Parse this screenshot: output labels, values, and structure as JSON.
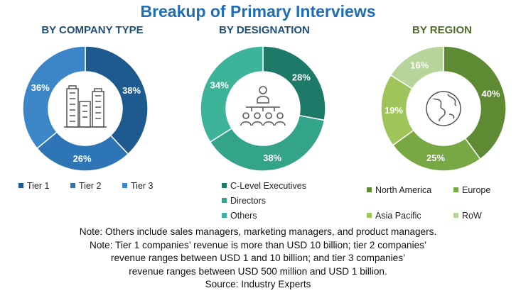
{
  "title": "Breakup of Primary Interviews",
  "colors": {
    "title": "#1f6eb5",
    "subtitle_company": "#1f4e79",
    "subtitle_designation": "#1f4e79",
    "subtitle_region": "#4e6f2c"
  },
  "chart_data": [
    {
      "type": "pie",
      "title": "BY COMPANY TYPE",
      "center_icon": "buildings-icon",
      "categories": [
        "Tier 1",
        "Tier 2",
        "Tier 3"
      ],
      "values": [
        38,
        26,
        36
      ],
      "labels": [
        "38%",
        "26%",
        "36%"
      ],
      "colors": [
        "#1f5a8f",
        "#2e75b6",
        "#3c86c8"
      ],
      "legend": "bottom"
    },
    {
      "type": "pie",
      "title": "BY DESIGNATION",
      "center_icon": "meeting-people-icon",
      "categories": [
        "C-Level Executives",
        "Directors",
        "Others"
      ],
      "values": [
        28,
        38,
        34
      ],
      "labels": [
        "28%",
        "38%",
        "34%"
      ],
      "colors": [
        "#1d7a68",
        "#33a38a",
        "#3db39a"
      ],
      "legend": "bottom"
    },
    {
      "type": "pie",
      "title": "BY REGION",
      "center_icon": "globe-icon",
      "categories": [
        "North America",
        "Europe",
        "Asia Pacific",
        "RoW"
      ],
      "values": [
        40,
        25,
        19,
        16
      ],
      "labels": [
        "40%",
        "25%",
        "19%",
        "16%"
      ],
      "colors": [
        "#5e8a33",
        "#78a843",
        "#9fc55a",
        "#b7d59a"
      ],
      "legend": "bottom"
    }
  ],
  "notes": [
    "Note: Others include sales managers, marketing managers, and product managers.",
    "Note: Tier 1 companies’ revenue is more than USD 10 billion; tier 2 companies’",
    "revenue ranges between USD 1 and 10 billion; and tier 3 companies’",
    "revenue ranges between USD 500 million and USD 1 billion.",
    "Source: Industry Experts"
  ]
}
